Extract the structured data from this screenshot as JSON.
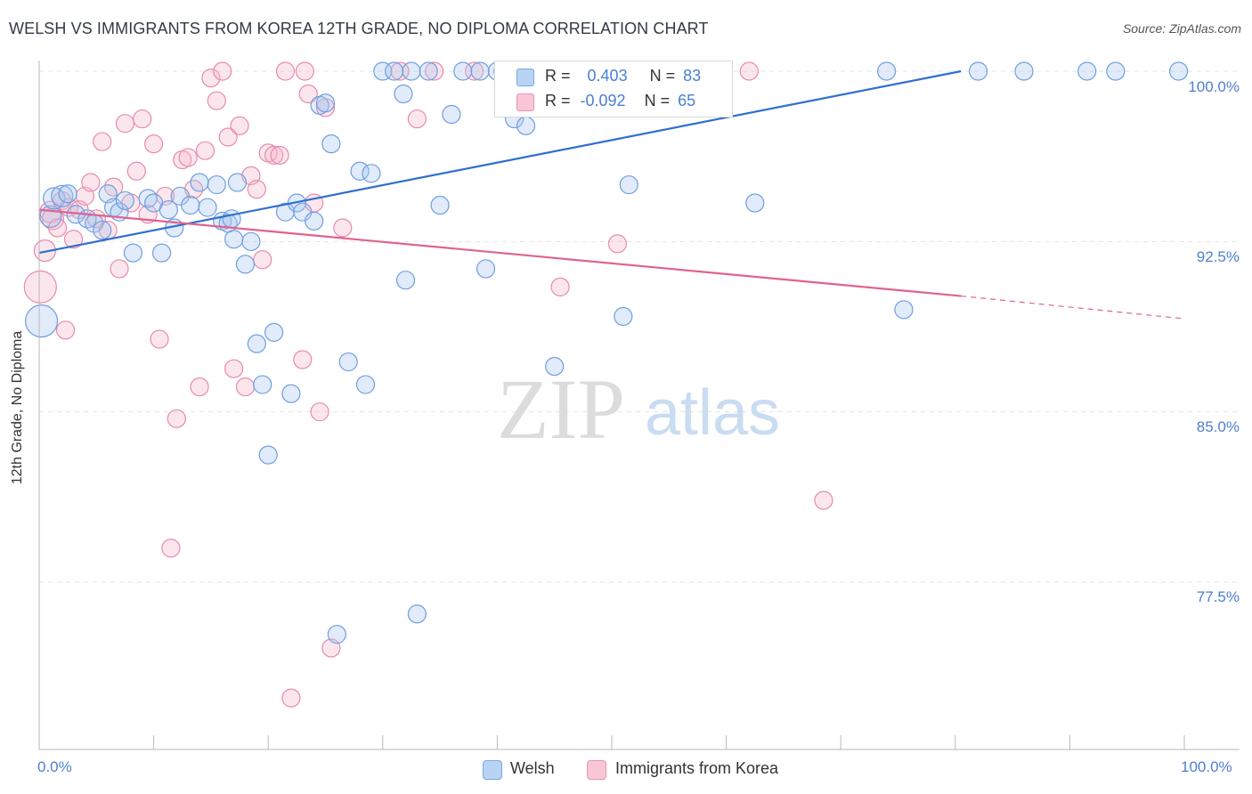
{
  "header": {
    "title": "WELSH VS IMMIGRANTS FROM KOREA 12TH GRADE, NO DIPLOMA CORRELATION CHART",
    "source": "Source: ZipAtlas.com"
  },
  "watermark": {
    "zip": "ZIP",
    "atlas": "atlas"
  },
  "legend": {
    "welsh": {
      "r_label": "R =",
      "r_value": "0.403",
      "n_label": "N =",
      "n_value": "83"
    },
    "korea": {
      "r_label": "R =",
      "r_value": "-0.092",
      "n_label": "N =",
      "n_value": "65"
    }
  },
  "bottom_legend": {
    "welsh": "Welsh",
    "korea": "Immigrants from Korea"
  },
  "axis": {
    "ylabel": "12th Grade, No Diploma",
    "x_left": "0.0%",
    "x_right": "100.0%",
    "y_ticks": [
      "100.0%",
      "92.5%",
      "85.0%",
      "77.5%"
    ]
  },
  "colors": {
    "welsh_fill": "#a9c7ef",
    "welsh_stroke": "#6f9ee0",
    "welsh_line": "#2f6fcf",
    "korea_fill": "#f6b7cb",
    "korea_stroke": "#e88aaa",
    "korea_line": "#e0628f",
    "tick_text": "#4e7fcf",
    "grid": "#e3e3e3"
  },
  "chart_data": {
    "type": "scatter",
    "xlim": [
      0,
      100
    ],
    "ylim": [
      71.8,
      100.7
    ],
    "y_ticks": [
      77.5,
      85.0,
      92.5,
      100.0
    ],
    "grid": "horizontal dashed",
    "legend_position": "top-center",
    "series": [
      {
        "name": "Welsh",
        "R": 0.403,
        "N": 83,
        "trend": {
          "x": [
            0,
            80.5
          ],
          "y": [
            92.0,
            100.0
          ]
        },
        "points": [
          [
            0.2,
            89.0,
            18
          ],
          [
            1.0,
            93.6,
            12
          ],
          [
            1.3,
            94.4,
            12
          ],
          [
            2.0,
            94.5,
            12
          ],
          [
            2.5,
            94.6,
            10
          ],
          [
            3.2,
            93.7,
            10
          ],
          [
            4.2,
            93.5,
            10
          ],
          [
            4.8,
            93.3,
            10
          ],
          [
            5.5,
            93.0,
            10
          ],
          [
            6.0,
            94.6,
            10
          ],
          [
            6.5,
            94.0,
            10
          ],
          [
            7.0,
            93.8,
            10
          ],
          [
            7.5,
            94.3,
            10
          ],
          [
            8.2,
            92.0,
            10
          ],
          [
            9.5,
            94.4,
            10
          ],
          [
            10.0,
            94.2,
            10
          ],
          [
            10.7,
            92.0,
            10
          ],
          [
            11.3,
            93.9,
            10
          ],
          [
            11.8,
            93.1,
            10
          ],
          [
            12.3,
            94.5,
            10
          ],
          [
            13.2,
            94.1,
            10
          ],
          [
            14.0,
            95.1,
            10
          ],
          [
            14.7,
            94.0,
            10
          ],
          [
            15.5,
            95.0,
            10
          ],
          [
            16.0,
            93.4,
            10
          ],
          [
            16.5,
            93.3,
            10
          ],
          [
            16.8,
            93.5,
            10
          ],
          [
            17.0,
            92.6,
            10
          ],
          [
            17.3,
            95.1,
            10
          ],
          [
            18.0,
            91.5,
            10
          ],
          [
            18.5,
            92.5,
            10
          ],
          [
            19.0,
            88.0,
            10
          ],
          [
            19.5,
            86.2,
            10
          ],
          [
            20.0,
            83.1,
            10
          ],
          [
            20.5,
            88.5,
            10
          ],
          [
            21.5,
            93.8,
            10
          ],
          [
            22.0,
            85.8,
            10
          ],
          [
            22.5,
            94.2,
            10
          ],
          [
            23.0,
            93.8,
            10
          ],
          [
            24.0,
            93.4,
            10
          ],
          [
            24.5,
            98.5,
            10
          ],
          [
            25.0,
            98.6,
            10
          ],
          [
            25.5,
            96.8,
            10
          ],
          [
            26.0,
            75.2,
            10
          ],
          [
            27.0,
            87.2,
            10
          ],
          [
            28.0,
            95.6,
            10
          ],
          [
            28.5,
            86.2,
            10
          ],
          [
            29.0,
            95.5,
            10
          ],
          [
            30.0,
            100.0,
            10
          ],
          [
            31.0,
            100.0,
            10
          ],
          [
            31.8,
            99.0,
            10
          ],
          [
            32.0,
            90.8,
            10
          ],
          [
            32.5,
            100.0,
            10
          ],
          [
            33.0,
            76.1,
            10
          ],
          [
            34.0,
            100.0,
            10
          ],
          [
            35.0,
            94.1,
            10
          ],
          [
            36.0,
            98.1,
            10
          ],
          [
            37.0,
            100.0,
            10
          ],
          [
            38.5,
            100.0,
            10
          ],
          [
            39.0,
            91.3,
            10
          ],
          [
            40.0,
            100.0,
            10
          ],
          [
            40.5,
            100.0,
            10
          ],
          [
            41.5,
            97.9,
            10
          ],
          [
            42.5,
            97.6,
            10
          ],
          [
            43.0,
            100.0,
            10
          ],
          [
            44.5,
            100.0,
            10
          ],
          [
            45.0,
            87.0,
            10
          ],
          [
            47.5,
            100.0,
            10
          ],
          [
            48.0,
            100.0,
            10
          ],
          [
            49.0,
            100.0,
            10
          ],
          [
            50.5,
            100.0,
            10
          ],
          [
            51.0,
            89.2,
            10
          ],
          [
            51.5,
            95.0,
            10
          ],
          [
            52.0,
            100.0,
            10
          ],
          [
            54.5,
            100.0,
            10
          ],
          [
            62.5,
            94.2,
            10
          ],
          [
            75.5,
            89.5,
            10
          ],
          [
            82.0,
            100.0,
            10
          ],
          [
            86.0,
            100.0,
            10
          ],
          [
            91.5,
            100.0,
            10
          ],
          [
            94.0,
            100.0,
            10
          ],
          [
            99.5,
            100.0,
            10
          ],
          [
            74.0,
            100.0,
            10
          ]
        ]
      },
      {
        "name": "Immigrants from Korea",
        "R": -0.092,
        "N": 65,
        "trend": {
          "x": [
            0,
            80.5
          ],
          "y": [
            93.9,
            90.1
          ]
        },
        "trend_dashed_extension": {
          "x": [
            80.5,
            100
          ],
          "y": [
            90.1,
            89.1
          ]
        },
        "points": [
          [
            0.1,
            90.5,
            18
          ],
          [
            0.5,
            92.1,
            12
          ],
          [
            1.0,
            93.8,
            12
          ],
          [
            1.2,
            93.5,
            12
          ],
          [
            1.6,
            93.1,
            10
          ],
          [
            2.0,
            94.3,
            10
          ],
          [
            2.3,
            88.6,
            10
          ],
          [
            2.6,
            94.0,
            10
          ],
          [
            3.0,
            92.6,
            10
          ],
          [
            3.5,
            93.9,
            10
          ],
          [
            4.0,
            94.5,
            10
          ],
          [
            4.5,
            95.1,
            10
          ],
          [
            5.0,
            93.5,
            10
          ],
          [
            5.5,
            96.9,
            10
          ],
          [
            6.0,
            93.0,
            10
          ],
          [
            6.5,
            94.9,
            10
          ],
          [
            7.0,
            91.3,
            10
          ],
          [
            7.5,
            97.7,
            10
          ],
          [
            8.0,
            94.2,
            10
          ],
          [
            8.5,
            95.6,
            10
          ],
          [
            9.0,
            97.9,
            10
          ],
          [
            9.5,
            93.7,
            10
          ],
          [
            10.0,
            96.8,
            10
          ],
          [
            10.5,
            88.2,
            10
          ],
          [
            11.0,
            94.5,
            10
          ],
          [
            11.5,
            79.0,
            10
          ],
          [
            12.0,
            84.7,
            10
          ],
          [
            12.5,
            96.1,
            10
          ],
          [
            13.0,
            96.2,
            10
          ],
          [
            13.5,
            94.8,
            10
          ],
          [
            14.0,
            86.1,
            10
          ],
          [
            14.5,
            96.5,
            10
          ],
          [
            15.0,
            99.7,
            10
          ],
          [
            15.5,
            98.7,
            10
          ],
          [
            16.0,
            100.0,
            10
          ],
          [
            16.5,
            97.1,
            10
          ],
          [
            17.0,
            86.9,
            10
          ],
          [
            17.5,
            97.6,
            10
          ],
          [
            18.0,
            86.1,
            10
          ],
          [
            18.5,
            95.4,
            10
          ],
          [
            19.0,
            94.8,
            10
          ],
          [
            19.5,
            91.7,
            10
          ],
          [
            20.0,
            96.4,
            10
          ],
          [
            20.5,
            96.3,
            10
          ],
          [
            21.0,
            96.3,
            10
          ],
          [
            21.5,
            100.0,
            10
          ],
          [
            22.0,
            72.4,
            10
          ],
          [
            23.0,
            87.3,
            10
          ],
          [
            23.5,
            99.0,
            10
          ],
          [
            24.0,
            94.2,
            10
          ],
          [
            24.5,
            85.0,
            10
          ],
          [
            25.0,
            98.4,
            10
          ],
          [
            25.5,
            74.6,
            10
          ],
          [
            26.5,
            93.1,
            10
          ],
          [
            31.5,
            100.0,
            10
          ],
          [
            33.0,
            97.9,
            10
          ],
          [
            34.5,
            100.0,
            10
          ],
          [
            38.0,
            100.0,
            10
          ],
          [
            41.0,
            98.9,
            10
          ],
          [
            45.5,
            90.5,
            10
          ],
          [
            50.5,
            92.4,
            10
          ],
          [
            52.0,
            100.0,
            10
          ],
          [
            62.0,
            100.0,
            10
          ],
          [
            68.5,
            81.1,
            10
          ],
          [
            23.2,
            100.0,
            10
          ]
        ]
      }
    ]
  }
}
